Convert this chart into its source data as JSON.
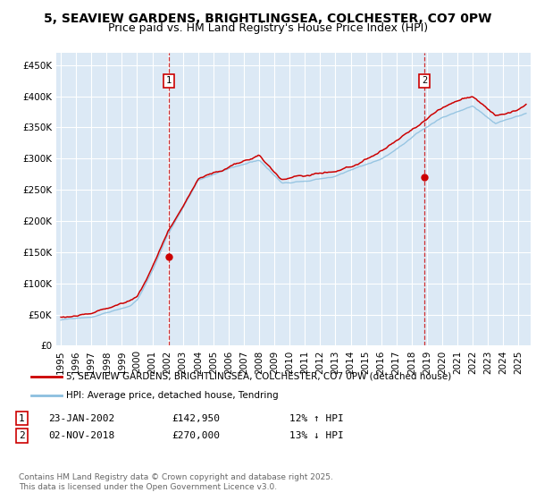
{
  "title_line1": "5, SEAVIEW GARDENS, BRIGHTLINGSEA, COLCHESTER, CO7 0PW",
  "title_line2": "Price paid vs. HM Land Registry's House Price Index (HPI)",
  "ylim": [
    0,
    470000
  ],
  "yticks": [
    0,
    50000,
    100000,
    150000,
    200000,
    250000,
    300000,
    350000,
    400000,
    450000
  ],
  "ytick_labels": [
    "£0",
    "£50K",
    "£100K",
    "£150K",
    "£200K",
    "£250K",
    "£300K",
    "£350K",
    "£400K",
    "£450K"
  ],
  "background_color": "#dce9f5",
  "grid_color": "#ffffff",
  "line1_color": "#cc0000",
  "line2_color": "#8bbfdf",
  "sale1_x": 2002.07,
  "sale1_price": 142950,
  "sale1_label": "1",
  "sale2_x": 2018.84,
  "sale2_price": 270000,
  "sale2_label": "2",
  "legend_label1": "5, SEAVIEW GARDENS, BRIGHTLINGSEA, COLCHESTER, CO7 0PW (detached house)",
  "legend_label2": "HPI: Average price, detached house, Tendring",
  "ann1_date": "23-JAN-2002",
  "ann1_price": "£142,950",
  "ann1_hpi": "12% ↑ HPI",
  "ann2_date": "02-NOV-2018",
  "ann2_price": "£270,000",
  "ann2_hpi": "13% ↓ HPI",
  "footer": "Contains HM Land Registry data © Crown copyright and database right 2025.\nThis data is licensed under the Open Government Licence v3.0.",
  "title_fontsize": 10,
  "subtitle_fontsize": 9,
  "tick_fontsize": 7.5,
  "legend_fontsize": 7.5,
  "ann_fontsize": 8,
  "footer_fontsize": 6.5
}
